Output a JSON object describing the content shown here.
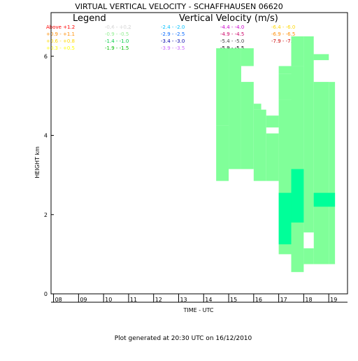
{
  "chart_data": {
    "type": "heatmap",
    "title": "VIRTUAL VERTICAL VELOCITY - SCHAFFHAUSEN 06620",
    "xlabel": "TIME - UTC",
    "ylabel": "HEIGHT km",
    "footer": "Plot generated at 20:30 UTC on 16/12/2010",
    "legend_title": "Legend",
    "legend_subtitle": "Vertical Velocity (m/s)",
    "xlim": [
      7.9,
      19.75
    ],
    "ylim": [
      0,
      7.1
    ],
    "x_ticks": [
      "08",
      "09",
      "10",
      "11",
      "12",
      "13",
      "14",
      "15",
      "16",
      "17",
      "18",
      "19"
    ],
    "y_ticks": [
      "0",
      "2",
      "4",
      "6"
    ],
    "legend_entries": [
      {
        "text": "Above +1.2",
        "color": "#ff0000",
        "col": 0,
        "row": 0
      },
      {
        "text": "+0.9 - +1.1",
        "color": "#ff8c00",
        "col": 0,
        "row": 1
      },
      {
        "text": "+0.6 - +0.8",
        "color": "#ffd700",
        "col": 0,
        "row": 2
      },
      {
        "text": "+0.3 - +0.5",
        "color": "#ffff00",
        "col": 0,
        "row": 3
      },
      {
        "text": "-0.4 - +0.2",
        "color": "#ffffff",
        "col": 1,
        "row": 0
      },
      {
        "text": "-0.9 - -0.5",
        "color": "#90ee90",
        "col": 1,
        "row": 1
      },
      {
        "text": "-1.4 - -1.0",
        "color": "#00cc44",
        "col": 1,
        "row": 2
      },
      {
        "text": "-1.9 - -1.5",
        "color": "#00bb00",
        "col": 1,
        "row": 3
      },
      {
        "text": "-2.4 - -2.0",
        "color": "#00c0ff",
        "col": 2,
        "row": 0
      },
      {
        "text": "-2.9 - -2.5",
        "color": "#0066ff",
        "col": 2,
        "row": 1
      },
      {
        "text": "-3.4 - -3.0",
        "color": "#0000aa",
        "col": 2,
        "row": 2
      },
      {
        "text": "-3.9 - -3.5",
        "color": "#cc66ff",
        "col": 2,
        "row": 3
      },
      {
        "text": "-4.4 - -4.0",
        "color": "#cc00cc",
        "col": 3,
        "row": 0
      },
      {
        "text": "-4.9 - -4.5",
        "color": "#cc0066",
        "col": 3,
        "row": 1
      },
      {
        "text": "-5.4 - -5.0",
        "color": "#444444",
        "col": 3,
        "row": 2
      },
      {
        "text": "-5.9 - -5.5",
        "color": "#000000",
        "col": 3,
        "row": 3
      },
      {
        "text": "-6.4 - -6.0",
        "color": "#ffd700",
        "col": 4,
        "row": 0
      },
      {
        "text": "-6.9 - -6.5",
        "color": "#ff8c00",
        "col": 4,
        "row": 1
      },
      {
        "text": "-7.9 - -7.0",
        "color": "#cc0000",
        "col": 4,
        "row": 2
      }
    ],
    "cells": [
      {
        "x0": 8.0,
        "x1": 8.5,
        "y0": 0.55,
        "y1": 2.05,
        "color": "#ffffff"
      },
      {
        "x0": 8.5,
        "x1": 9.5,
        "y0": 0.55,
        "y1": 2.2,
        "color": "#ffffff"
      },
      {
        "x0": 9.5,
        "x1": 10.0,
        "y0": 0.55,
        "y1": 2.05,
        "color": "#ffffff"
      },
      {
        "x0": 10.0,
        "x1": 11.5,
        "y0": 0.55,
        "y1": 2.35,
        "color": "#ffffff"
      },
      {
        "x0": 11.5,
        "x1": 12.0,
        "y0": 0.55,
        "y1": 1.8,
        "color": "#ffffff"
      },
      {
        "x0": 12.0,
        "x1": 13.0,
        "y0": 0.55,
        "y1": 2.5,
        "color": "#ffffff"
      },
      {
        "x0": 13.0,
        "x1": 14.0,
        "y0": 0.55,
        "y1": 2.35,
        "color": "#ffffff"
      },
      {
        "x0": 14.0,
        "x1": 14.5,
        "y0": 0.55,
        "y1": 2.5,
        "color": "#ffffff"
      },
      {
        "x0": 14.5,
        "x1": 15.0,
        "y0": 0.55,
        "y1": 2.85,
        "color": "#ffffff"
      },
      {
        "x0": 15.0,
        "x1": 16.0,
        "y0": 0.55,
        "y1": 3.15,
        "color": "#ffffff"
      },
      {
        "x0": 16.0,
        "x1": 17.0,
        "y0": 0.55,
        "y1": 2.85,
        "color": "#ffffff"
      },
      {
        "x0": 14.5,
        "x1": 15.0,
        "y0": 4.25,
        "y1": 6.2,
        "color": "#80ff99"
      },
      {
        "x0": 14.5,
        "x1": 15.0,
        "y0": 2.85,
        "y1": 4.25,
        "color": "#80ff99"
      },
      {
        "x0": 15.0,
        "x1": 15.5,
        "y0": 3.15,
        "y1": 6.2,
        "color": "#80ff99"
      },
      {
        "x0": 15.5,
        "x1": 16.0,
        "y0": 3.15,
        "y1": 5.35,
        "color": "#80ff99"
      },
      {
        "x0": 15.5,
        "x1": 16.0,
        "y0": 5.75,
        "y1": 6.2,
        "color": "#80ff99"
      },
      {
        "x0": 16.0,
        "x1": 16.0,
        "y0": 0.0,
        "y1": 0.0,
        "color": "#80ff99"
      },
      {
        "x0": 16.0,
        "x1": 16.5,
        "y0": 2.85,
        "y1": 4.65,
        "color": "#80ff99"
      },
      {
        "x0": 16.5,
        "x1": 17.0,
        "y0": 2.85,
        "y1": 4.05,
        "color": "#80ff99"
      },
      {
        "x0": 16.5,
        "x1": 17.0,
        "y0": 4.2,
        "y1": 4.5,
        "color": "#80ff99"
      },
      {
        "x0": 16.0,
        "x1": 16.3,
        "y0": 4.65,
        "y1": 4.8,
        "color": "#80ff99"
      },
      {
        "x0": 17.0,
        "x1": 17.5,
        "y0": 1.0,
        "y1": 4.9,
        "color": "#80ff99"
      },
      {
        "x0": 17.0,
        "x1": 17.5,
        "y0": 5.55,
        "y1": 5.75,
        "color": "#80ff99"
      },
      {
        "x0": 17.5,
        "x1": 18.0,
        "y0": 0.55,
        "y1": 5.75,
        "color": "#80ff99"
      },
      {
        "x0": 17.0,
        "x1": 17.5,
        "y0": 4.9,
        "y1": 5.55,
        "color": "#80ff99"
      },
      {
        "x0": 17.5,
        "x1": 18.0,
        "y0": 5.75,
        "y1": 6.5,
        "color": "#80ff99"
      },
      {
        "x0": 18.0,
        "x1": 18.4,
        "y0": 0.75,
        "y1": 6.5,
        "color": "#80ff99"
      },
      {
        "x0": 18.4,
        "x1": 19.0,
        "y0": 0.75,
        "y1": 6.05,
        "color": "#80ff99"
      },
      {
        "x0": 18.4,
        "x1": 19.0,
        "y0": 5.35,
        "y1": 6.05,
        "color": "#80ff99"
      },
      {
        "x0": 19.0,
        "x1": 19.25,
        "y0": 0.75,
        "y1": 5.35,
        "color": "#80ff99"
      },
      {
        "x0": 18.0,
        "x1": 18.4,
        "y0": 1.15,
        "y1": 1.55,
        "color": "#ffffff"
      },
      {
        "x0": 17.0,
        "x1": 17.5,
        "y0": 1.25,
        "y1": 2.55,
        "color": "#00ff99"
      },
      {
        "x0": 17.5,
        "x1": 18.0,
        "y0": 1.8,
        "y1": 3.15,
        "color": "#00ff99"
      },
      {
        "x0": 18.4,
        "x1": 19.25,
        "y0": 2.2,
        "y1": 2.55,
        "color": "#00ff99"
      },
      {
        "x0": 18.4,
        "x1": 19.25,
        "y0": 5.35,
        "y1": 5.9,
        "color": "#ffffff"
      }
    ]
  }
}
